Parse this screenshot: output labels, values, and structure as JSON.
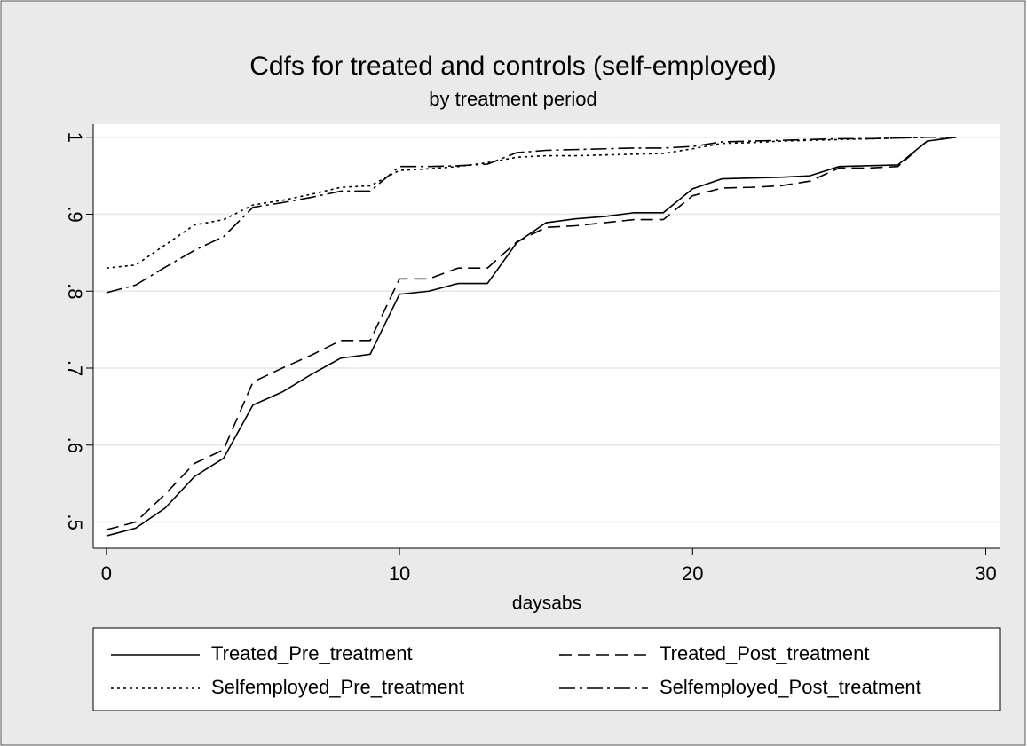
{
  "chart_data": {
    "type": "line",
    "title": "Cdfs for treated and controls (self-employed)",
    "subtitle": "by treatment period",
    "xlabel": "daysabs",
    "x": [
      0,
      1,
      2,
      3,
      4,
      5,
      6,
      7,
      8,
      9,
      10,
      11,
      12,
      13,
      14,
      15,
      16,
      17,
      18,
      19,
      20,
      21,
      22,
      23,
      24,
      25,
      26,
      27,
      28,
      29
    ],
    "series": [
      {
        "name": "Treated_Pre_treatment",
        "color": "#000000",
        "dash": "none",
        "values": [
          0.482,
          0.492,
          0.518,
          0.559,
          0.583,
          0.652,
          0.669,
          0.692,
          0.713,
          0.718,
          0.796,
          0.8,
          0.81,
          0.81,
          0.863,
          0.889,
          0.894,
          0.897,
          0.902,
          0.902,
          0.933,
          0.946,
          0.947,
          0.948,
          0.95,
          0.962,
          0.963,
          0.964,
          0.995,
          1
        ]
      },
      {
        "name": "Treated_Post_treatment",
        "color": "#000000",
        "dash": "14 7",
        "values": [
          0.49,
          0.5,
          0.536,
          0.576,
          0.594,
          0.682,
          0.7,
          0.717,
          0.736,
          0.736,
          0.816,
          0.816,
          0.83,
          0.83,
          0.864,
          0.883,
          0.885,
          0.889,
          0.893,
          0.893,
          0.924,
          0.934,
          0.935,
          0.937,
          0.943,
          0.96,
          0.96,
          0.962,
          0.995,
          1
        ]
      },
      {
        "name": "Selfemployed_Pre_treatment",
        "color": "#000000",
        "dash": "3 4",
        "values": [
          0.83,
          0.834,
          0.86,
          0.886,
          0.893,
          0.912,
          0.918,
          0.926,
          0.935,
          0.937,
          0.957,
          0.959,
          0.962,
          0.967,
          0.974,
          0.976,
          0.976,
          0.977,
          0.978,
          0.979,
          0.985,
          0.992,
          0.993,
          0.995,
          0.996,
          0.997,
          0.998,
          0.999,
          1,
          1
        ]
      },
      {
        "name": "Selfemployed_Post_treatment",
        "color": "#000000",
        "dash": "18 5 3 5",
        "values": [
          0.798,
          0.808,
          0.831,
          0.853,
          0.871,
          0.909,
          0.915,
          0.922,
          0.93,
          0.93,
          0.962,
          0.962,
          0.963,
          0.965,
          0.98,
          0.983,
          0.984,
          0.985,
          0.986,
          0.986,
          0.988,
          0.994,
          0.995,
          0.996,
          0.997,
          0.998,
          0.998,
          0.999,
          1,
          1
        ]
      }
    ],
    "xlim": [
      -0.45,
      30.5
    ],
    "xticks": [
      0,
      10,
      20,
      30
    ],
    "ylim": [
      0.466,
      1.017
    ],
    "yticks": [
      {
        "value": 0.5,
        "label": ".5"
      },
      {
        "value": 0.6,
        "label": ".6"
      },
      {
        "value": 0.7,
        "label": ".7"
      },
      {
        "value": 0.8,
        "label": ".8"
      },
      {
        "value": 0.9,
        "label": ".9"
      },
      1
    ],
    "grid": true,
    "legend": "bottom"
  }
}
